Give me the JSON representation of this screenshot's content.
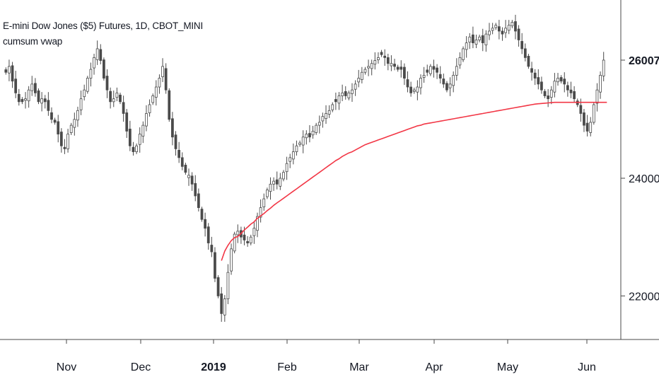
{
  "chart_data": {
    "type": "candlestick",
    "title": "E-mini Dow Jones ($5) Futures, 1D, CBOT_MINI",
    "subtitle": "cumsum vwap",
    "x_tick_labels": [
      "Nov",
      "Dec",
      "2019",
      "Feb",
      "Mar",
      "Apr",
      "May",
      "Jun"
    ],
    "y_tick_labels": [
      "22000",
      "24000"
    ],
    "last_price_label": "26007",
    "ylim": [
      21200,
      26900
    ],
    "close_path": [
      25800,
      25900,
      25650,
      25450,
      25300,
      25300,
      25350,
      25500,
      25600,
      25450,
      25300,
      25350,
      25300,
      25150,
      25000,
      24950,
      24750,
      24550,
      24500,
      24750,
      24900,
      25000,
      25150,
      25350,
      25500,
      25700,
      25850,
      26050,
      26200,
      26000,
      25700,
      25500,
      25300,
      25350,
      25450,
      25300,
      25100,
      24800,
      24550,
      24450,
      24550,
      24750,
      24900,
      25100,
      25250,
      25400,
      25550,
      25700,
      25900,
      25500,
      25000,
      24700,
      24500,
      24350,
      24200,
      24100,
      24050,
      23900,
      23700,
      23500,
      23300,
      23150,
      22900,
      22750,
      22300,
      22000,
      21700,
      21950,
      22400,
      22800,
      23050,
      23100,
      23000,
      22950,
      22900,
      23000,
      23150,
      23350,
      23500,
      23650,
      23800,
      23900,
      23950,
      23900,
      24000,
      24100,
      24250,
      24350,
      24450,
      24550,
      24600,
      24700,
      24750,
      24700,
      24800,
      24900,
      24950,
      25050,
      25100,
      25150,
      25250,
      25300,
      25400,
      25450,
      25400,
      25450,
      25500,
      25600,
      25700,
      25800,
      25850,
      25900,
      25950,
      26000,
      26050,
      26100,
      26050,
      25950,
      25950,
      25900,
      25850,
      25850,
      25700,
      25550,
      25450,
      25500,
      25550,
      25700,
      25750,
      25800,
      25900,
      25850,
      25800,
      25700,
      25600,
      25500,
      25600,
      25750,
      25900,
      26050,
      26200,
      26300,
      26400,
      26300,
      26350,
      26400,
      26300,
      26450,
      26500,
      26550,
      26600,
      26500,
      26450,
      26550,
      26600,
      26650,
      26500,
      26350,
      26200,
      26050,
      25900,
      25800,
      25700,
      25600,
      25500,
      25400,
      25350,
      25500,
      25650,
      25700,
      25650,
      25600,
      25500,
      25450,
      25350,
      25250,
      25100,
      24900,
      24800,
      24950,
      25250,
      25500,
      25750,
      26007
    ],
    "vwap_series": {
      "name": "cumsum vwap",
      "color": "#f23645",
      "start_index": 66,
      "values": [
        22600,
        22760,
        22860,
        22940,
        22990,
        23010,
        23060,
        23120,
        23170,
        23220,
        23260,
        23320,
        23360,
        23400,
        23450,
        23490,
        23540,
        23580,
        23620,
        23660,
        23700,
        23740,
        23780,
        23820,
        23860,
        23900,
        23940,
        23980,
        24020,
        24060,
        24100,
        24140,
        24180,
        24220,
        24260,
        24300,
        24330,
        24370,
        24400,
        24430,
        24450,
        24480,
        24510,
        24540,
        24570,
        24590,
        24610,
        24630,
        24650,
        24670,
        24690,
        24710,
        24730,
        24750,
        24770,
        24790,
        24810,
        24830,
        24850,
        24870,
        24890,
        24900,
        24920,
        24930,
        24940,
        24950,
        24960,
        24970,
        24980,
        24990,
        25000,
        25010,
        25020,
        25030,
        25040,
        25050,
        25060,
        25070,
        25080,
        25090,
        25100,
        25110,
        25120,
        25130,
        25140,
        25150,
        25160,
        25170,
        25180,
        25190,
        25200,
        25210,
        25220,
        25230,
        25240,
        25250,
        25260,
        25265,
        25270,
        25275,
        25280,
        25285,
        25290,
        25290,
        25290,
        25290,
        25290,
        25290,
        25290,
        25290,
        25290,
        25290,
        25290,
        25290,
        25290,
        25290,
        25290,
        25290,
        25290
      ]
    },
    "colors": {
      "up": "#ffffff",
      "down": "#4a4a4a",
      "wick": "#4a4a4a",
      "axis": "#4a4a4a",
      "text": "#131722"
    }
  }
}
